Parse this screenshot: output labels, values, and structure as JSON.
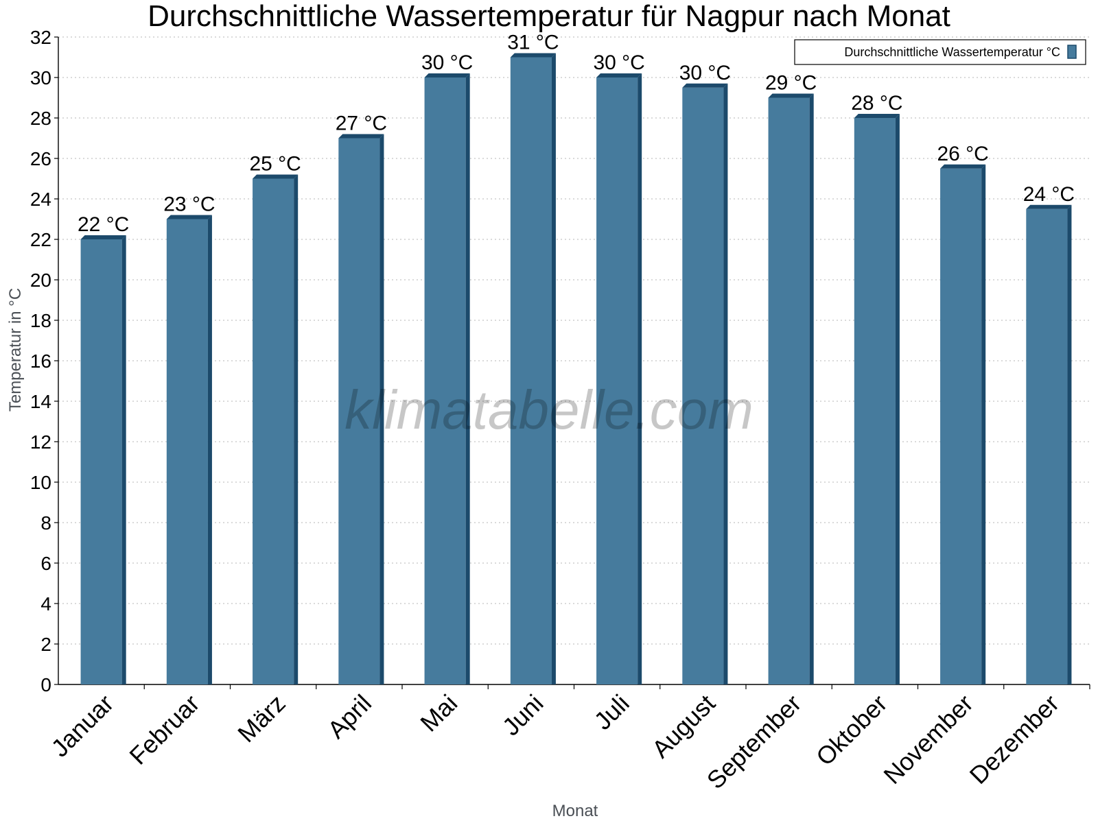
{
  "chart_data": {
    "type": "bar",
    "title": "Durchschnittliche Wassertemperatur für Nagpur nach Monat",
    "xlabel": "Monat",
    "ylabel": "Temperatur in °C",
    "categories": [
      "Januar",
      "Februar",
      "März",
      "April",
      "Mai",
      "Juni",
      "Juli",
      "August",
      "September",
      "Oktober",
      "November",
      "Dezember"
    ],
    "series": [
      {
        "name": "Durchschnittliche Wassertemperatur °C",
        "values": [
          22,
          23,
          25,
          27,
          30,
          31,
          30,
          29.5,
          29,
          28,
          25.5,
          23.5
        ],
        "labels": [
          "22 °C",
          "23 °C",
          "25 °C",
          "27 °C",
          "30 °C",
          "31 °C",
          "30 °C",
          "30 °C",
          "29 °C",
          "28 °C",
          "26 °C",
          "24 °C"
        ]
      }
    ],
    "yticks": [
      "0",
      "2",
      "4",
      "6",
      "8",
      "10",
      "12",
      "14",
      "16",
      "18",
      "20",
      "22",
      "24",
      "26",
      "28",
      "30",
      "32"
    ],
    "ylim": [
      0,
      32
    ],
    "ytick_step": 2,
    "grid": true,
    "legend_position": "top-right",
    "bar_color": "#467b9d",
    "bar_edge_color": "#1c4a6b",
    "watermark": "klimatabelle.com"
  }
}
